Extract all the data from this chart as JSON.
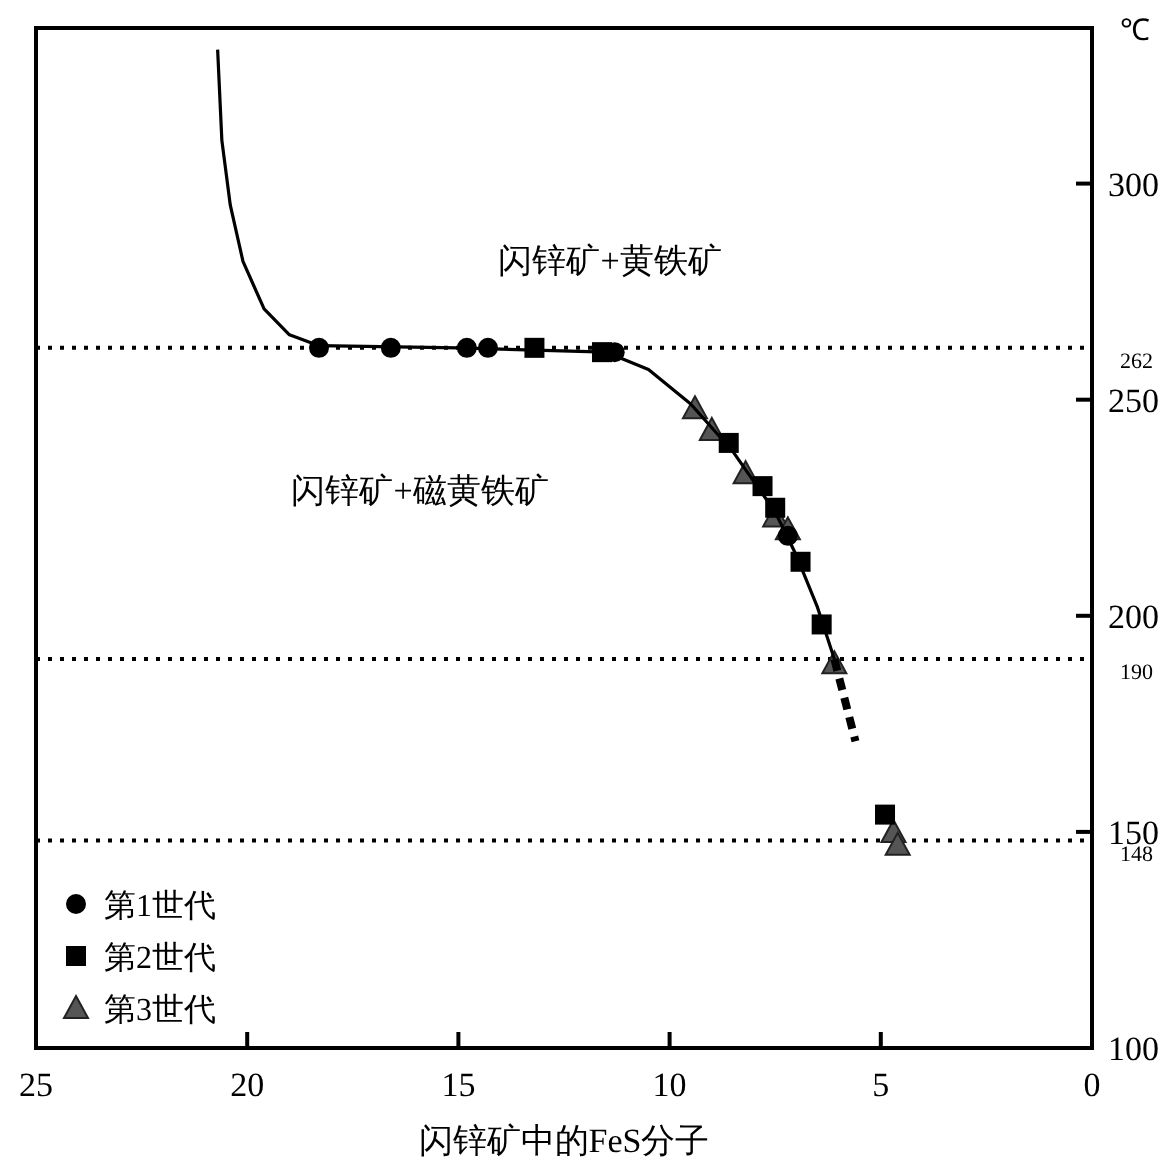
{
  "chart_data": {
    "type": "scatter",
    "xlabel": "闪锌矿中的FeS分子",
    "ylabel": "℃",
    "xlim": [
      25,
      0
    ],
    "ylim": [
      100,
      336
    ],
    "xticks": [
      25,
      20,
      15,
      10,
      5,
      0
    ],
    "yticks": [
      100,
      150,
      200,
      250,
      300
    ],
    "grid": false,
    "legend": "bottom left",
    "annotations": [
      "闪锌矿+黄铁矿",
      "闪锌矿+磁黄铁矿"
    ],
    "ref_lines": [
      {
        "axis": "y",
        "value": 262,
        "label": "262",
        "line_style": "dotted",
        "color": "#000000"
      },
      {
        "axis": "y",
        "value": 190,
        "label": "190",
        "line_style": "dotted",
        "color": "#000000"
      },
      {
        "axis": "y",
        "value": 148,
        "label": "148",
        "line_style": "dotted",
        "color": "#000000"
      }
    ],
    "series": [
      {
        "type": "line",
        "color": "#000000",
        "marker": "none",
        "line_style": "solid",
        "x": [
          20.7,
          20.6,
          20.4,
          20.1,
          19.6,
          19,
          18.3,
          15,
          11.5,
          10.5,
          9.5,
          8.5,
          7.5,
          7,
          6.5,
          6.1
        ],
        "values": [
          331,
          310,
          295,
          282,
          271,
          265,
          262.5,
          262,
          261,
          257,
          249,
          238,
          224,
          214,
          202,
          190
        ]
      },
      {
        "type": "line",
        "color": "#000000",
        "marker": "none",
        "line_style": "dashed",
        "x": [
          6.1,
          5.6
        ],
        "values": [
          190,
          171
        ]
      },
      {
        "name": "第1世代",
        "marker": "circle",
        "color": "#000000",
        "x": [
          18.3,
          16.6,
          14.8,
          14.3,
          11.3,
          7.2
        ],
        "values": [
          262,
          262,
          262,
          262,
          261,
          218.5
        ]
      },
      {
        "name": "第2世代",
        "marker": "square",
        "color": "#000000",
        "x": [
          13.2,
          11.6,
          8.6,
          7.8,
          7.5,
          6.9,
          6.4,
          4.9
        ],
        "values": [
          262,
          261,
          240,
          230,
          225,
          212.5,
          198,
          154
        ]
      },
      {
        "name": "第3世代",
        "marker": "triangle",
        "color": "#555555",
        "x": [
          9.4,
          9.0,
          8.2,
          7.5,
          7.2,
          6.1,
          4.7,
          4.6
        ],
        "values": [
          248,
          243,
          233,
          223,
          220,
          189,
          150,
          147
        ]
      }
    ]
  }
}
